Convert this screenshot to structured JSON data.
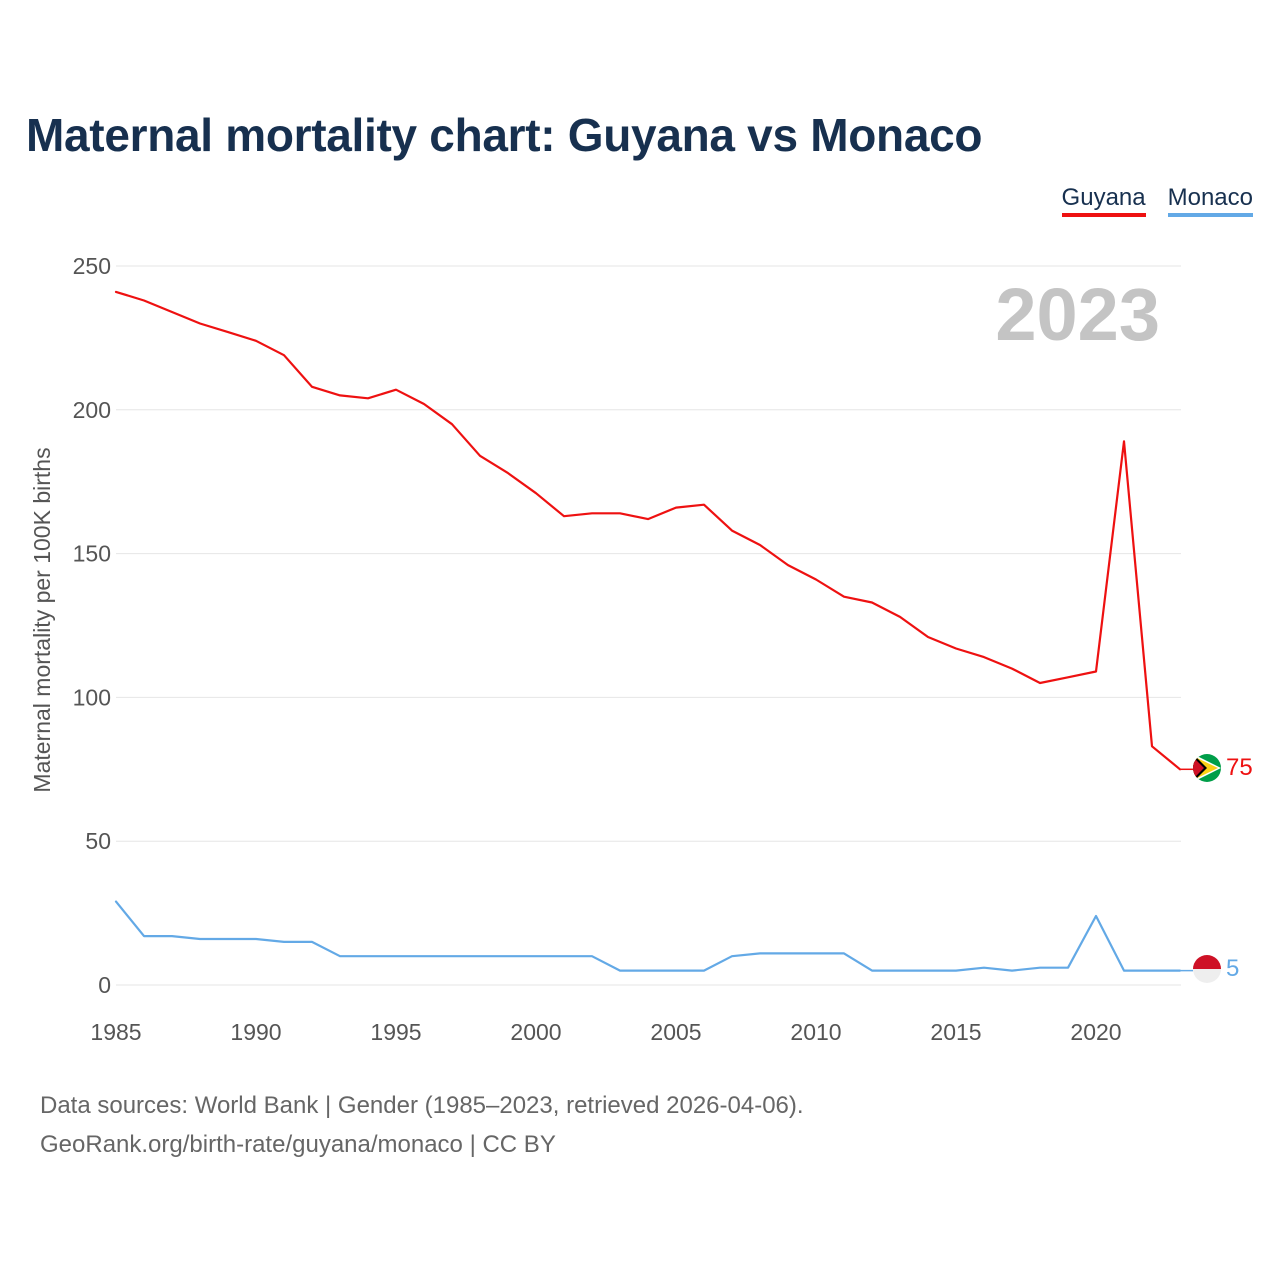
{
  "title": "Maternal mortality chart: Guyana vs Monaco",
  "legend": {
    "guyana": "Guyana",
    "monaco": "Monaco"
  },
  "year_label": "2023",
  "footer": {
    "sources": "Data sources: World Bank | Gender (1985–2023, retrieved 2026-04-06).",
    "credit": "GeoRank.org/birth-rate/guyana/monaco | CC BY"
  },
  "colors": {
    "guyana": "#ee1111",
    "monaco": "#63a9e6",
    "title": "#17304f",
    "grid": "#e6e6e6"
  },
  "flags": {
    "guyana": "guyana-flag-icon",
    "monaco": "monaco-flag-icon"
  },
  "chart_data": {
    "type": "line",
    "title": "Maternal mortality chart: Guyana vs Monaco",
    "xlabel": "",
    "ylabel": "Maternal mortality per 100K births",
    "xlim": [
      1985,
      2023
    ],
    "ylim": [
      0,
      250
    ],
    "yticks": [
      0,
      50,
      100,
      150,
      200,
      250
    ],
    "xticks": [
      1985,
      1990,
      1995,
      2000,
      2005,
      2010,
      2015,
      2020
    ],
    "grid": true,
    "legend_position": "top-right",
    "x": [
      1985,
      1986,
      1987,
      1988,
      1989,
      1990,
      1991,
      1992,
      1993,
      1994,
      1995,
      1996,
      1997,
      1998,
      1999,
      2000,
      2001,
      2002,
      2003,
      2004,
      2005,
      2006,
      2007,
      2008,
      2009,
      2010,
      2011,
      2012,
      2013,
      2014,
      2015,
      2016,
      2017,
      2018,
      2019,
      2020,
      2021,
      2022,
      2023
    ],
    "series": [
      {
        "name": "Guyana",
        "color": "#ee1111",
        "end_label": "75",
        "values": [
          241,
          238,
          234,
          230,
          227,
          224,
          219,
          208,
          205,
          204,
          207,
          202,
          195,
          184,
          178,
          171,
          163,
          164,
          164,
          162,
          166,
          167,
          158,
          153,
          146,
          141,
          135,
          133,
          128,
          121,
          117,
          114,
          110,
          105,
          107,
          109,
          189,
          83,
          75
        ]
      },
      {
        "name": "Monaco",
        "color": "#63a9e6",
        "end_label": "5",
        "values": [
          29,
          17,
          17,
          16,
          16,
          16,
          15,
          15,
          10,
          10,
          10,
          10,
          10,
          10,
          10,
          10,
          10,
          10,
          5,
          5,
          5,
          5,
          10,
          11,
          11,
          11,
          11,
          5,
          5,
          5,
          5,
          6,
          5,
          6,
          6,
          24,
          5,
          5,
          5
        ]
      }
    ]
  }
}
